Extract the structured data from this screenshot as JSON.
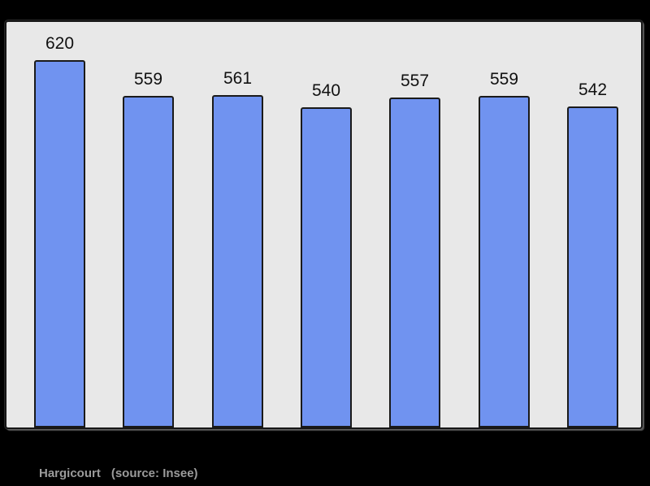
{
  "colors": {
    "page_background": "#000000",
    "plot_background": "#e8e8e8",
    "bar_fill": "#7093f0",
    "bar_border": "#1a1a1a",
    "value_label_color": "#111111",
    "caption_color": "#9b9b9b"
  },
  "caption": {
    "title": "Hargicourt",
    "source": "(source: Insee)"
  },
  "chart_data": {
    "type": "bar",
    "title": "Hargicourt",
    "subtitle": "(source: Insee)",
    "categories": [
      "",
      "",
      "",
      "",
      "",
      "",
      ""
    ],
    "values": [
      620,
      559,
      561,
      540,
      557,
      559,
      542
    ],
    "data_labels": [
      "620",
      "559",
      "561",
      "540",
      "557",
      "559",
      "542"
    ],
    "xlabel": "",
    "ylabel": "",
    "ylim": [
      0,
      684
    ],
    "grid": false,
    "axes_ticks_visible": false,
    "legend": "none",
    "layout_hint": "bars bottom-aligned to plot floor, value labels above each bar, no visible axes"
  }
}
